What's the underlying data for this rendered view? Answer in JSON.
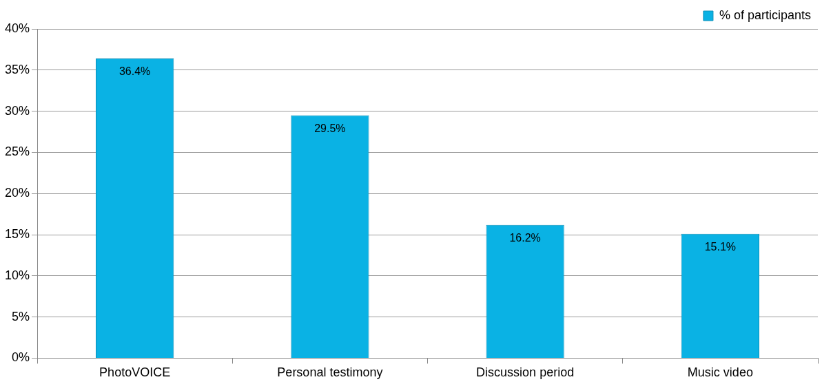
{
  "chart_data": {
    "type": "bar",
    "categories": [
      "PhotoVOICE",
      "Personal testimony",
      "Discussion period",
      "Music video"
    ],
    "series": [
      {
        "name": "% of participants",
        "color": "#0ab2e4",
        "values": [
          36.4,
          29.5,
          16.2,
          15.1
        ],
        "value_labels": [
          "36.4%",
          "29.5%",
          "16.2%",
          "15.1%"
        ]
      }
    ],
    "ylim": [
      0,
      40
    ],
    "yticks": [
      {
        "value": 0,
        "label": "0%"
      },
      {
        "value": 5,
        "label": "5%"
      },
      {
        "value": 10,
        "label": "10%"
      },
      {
        "value": 15,
        "label": "15%"
      },
      {
        "value": 20,
        "label": "20%"
      },
      {
        "value": 25,
        "label": "25%"
      },
      {
        "value": 30,
        "label": "30%"
      },
      {
        "value": 35,
        "label": "35%"
      },
      {
        "value": 40,
        "label": "40%"
      }
    ],
    "grid": "y",
    "legend": "top right"
  }
}
